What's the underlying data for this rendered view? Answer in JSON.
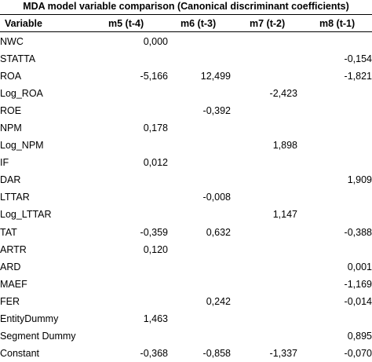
{
  "title": "MDA model variable comparison (Canonical discriminant coefficients)",
  "columns": [
    "Variable",
    "m5 (t-4)",
    "m6 (t-3)",
    "m7 (t-2)",
    "m8 (t-1)"
  ],
  "rows": [
    {
      "variable": "NWC",
      "m5": "0,000",
      "m6": "",
      "m7": "",
      "m8": ""
    },
    {
      "variable": "STATTA",
      "m5": "",
      "m6": "",
      "m7": "",
      "m8": "-0,154"
    },
    {
      "variable": "ROA",
      "m5": "-5,166",
      "m6": "12,499",
      "m7": "",
      "m8": "-1,821"
    },
    {
      "variable": "Log_ROA",
      "m5": "",
      "m6": "",
      "m7": "-2,423",
      "m8": ""
    },
    {
      "variable": "ROE",
      "m5": "",
      "m6": "-0,392",
      "m7": "",
      "m8": ""
    },
    {
      "variable": "NPM",
      "m5": "0,178",
      "m6": "",
      "m7": "",
      "m8": ""
    },
    {
      "variable": "Log_NPM",
      "m5": "",
      "m6": "",
      "m7": "1,898",
      "m8": ""
    },
    {
      "variable": "IF",
      "m5": "0,012",
      "m6": "",
      "m7": "",
      "m8": ""
    },
    {
      "variable": "DAR",
      "m5": "",
      "m6": "",
      "m7": "",
      "m8": "1,909"
    },
    {
      "variable": "LTTAR",
      "m5": "",
      "m6": "-0,008",
      "m7": "",
      "m8": ""
    },
    {
      "variable": "Log_LTTAR",
      "m5": "",
      "m6": "",
      "m7": "1,147",
      "m8": ""
    },
    {
      "variable": "TAT",
      "m5": "-0,359",
      "m6": "0,632",
      "m7": "",
      "m8": "-0,388"
    },
    {
      "variable": "ARTR",
      "m5": "0,120",
      "m6": "",
      "m7": "",
      "m8": ""
    },
    {
      "variable": "ARD",
      "m5": "",
      "m6": "",
      "m7": "",
      "m8": "0,001"
    },
    {
      "variable": "MAEF",
      "m5": "",
      "m6": "",
      "m7": "",
      "m8": "-1,169"
    },
    {
      "variable": "FER",
      "m5": "",
      "m6": "0,242",
      "m7": "",
      "m8": "-0,014"
    },
    {
      "variable": "EntityDummy",
      "m5": "1,463",
      "m6": "",
      "m7": "",
      "m8": ""
    },
    {
      "variable": "Segment Dummy",
      "m5": "",
      "m6": "",
      "m7": "",
      "m8": "0,895"
    },
    {
      "variable": "Constant",
      "m5": "-0,368",
      "m6": "-0,858",
      "m7": "-1,337",
      "m8": "-0,070"
    }
  ]
}
